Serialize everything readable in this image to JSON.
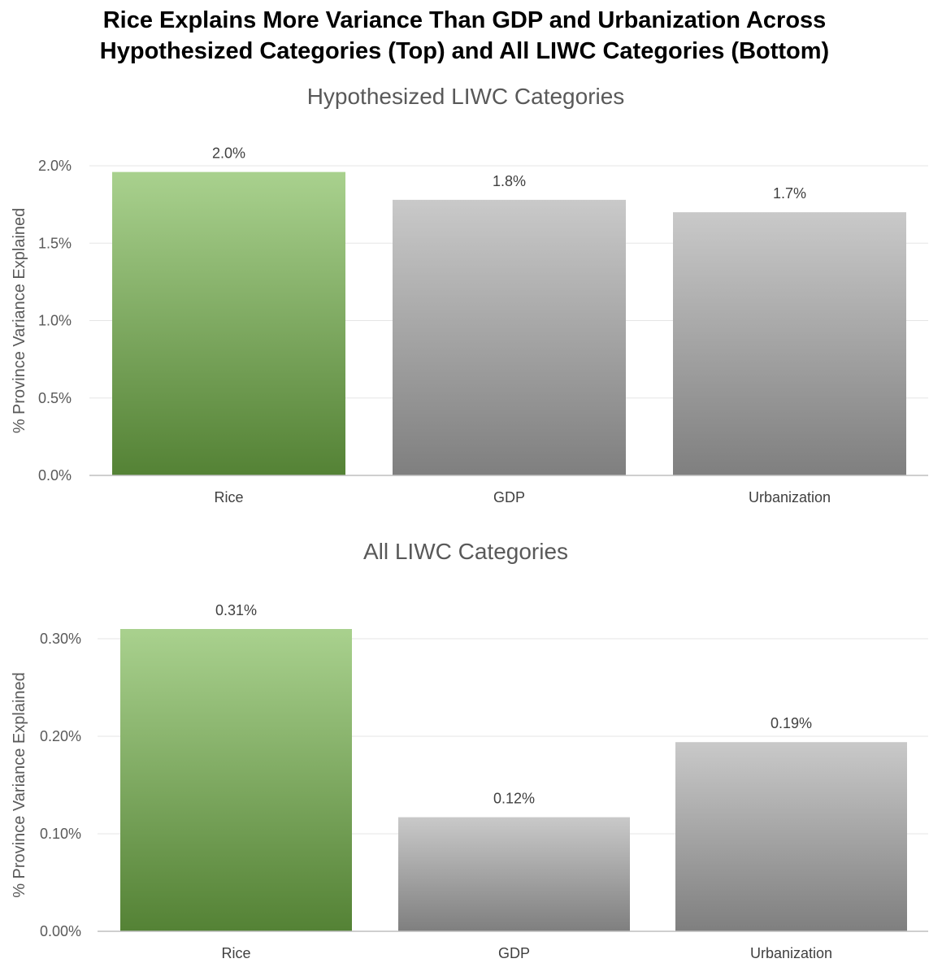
{
  "title_lines": [
    "Rice Explains More Variance Than GDP and Urbanization Across",
    "Hypothesized Categories (Top) and All LIWC Categories (Bottom)"
  ],
  "colors": {
    "highlight_top": "#a9d18e",
    "highlight_bottom": "#548235",
    "neutral_top": "#c9c9c9",
    "neutral_bottom": "#7f7f7f",
    "grid": "#e5e5e5",
    "axis": "#bfbfbf"
  },
  "chart_data": [
    {
      "type": "bar",
      "title": "Hypothesized LIWC Categories",
      "ylabel": "% Province Variance Explained",
      "categories": [
        "Rice",
        "GDP",
        "Urbanization"
      ],
      "values": [
        1.96,
        1.78,
        1.7
      ],
      "data_labels": [
        "2.0%",
        "1.8%",
        "1.7%"
      ],
      "highlight": [
        true,
        false,
        false
      ],
      "ylim": [
        0,
        2.0
      ],
      "yticks": [
        0,
        0.5,
        1.0,
        1.5,
        2.0
      ],
      "ytick_labels": [
        "0.0%",
        "0.5%",
        "1.0%",
        "1.5%",
        "2.0%"
      ],
      "grid": true
    },
    {
      "type": "bar",
      "title": "All LIWC Categories",
      "ylabel": "% Province Variance Explained",
      "categories": [
        "Rice",
        "GDP",
        "Urbanization"
      ],
      "values": [
        0.31,
        0.117,
        0.194
      ],
      "data_labels": [
        "0.31%",
        "0.12%",
        "0.19%"
      ],
      "highlight": [
        true,
        false,
        false
      ],
      "ylim": [
        0,
        0.3
      ],
      "yticks": [
        0,
        0.1,
        0.2,
        0.3
      ],
      "ytick_labels": [
        "0.00%",
        "0.10%",
        "0.20%",
        "0.30%"
      ],
      "grid": true
    }
  ]
}
